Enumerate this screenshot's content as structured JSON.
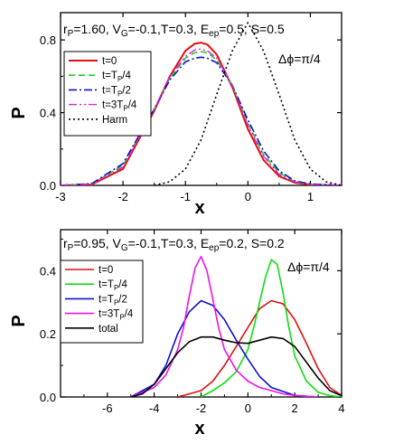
{
  "chart_data": [
    {
      "type": "line",
      "title": {
        "parts": [
          {
            "t": "r"
          },
          {
            "t": "P",
            "sub": true
          },
          {
            "t": "=1.60, V"
          },
          {
            "t": "G",
            "sub": true
          },
          {
            "t": "=-0.1,T=0.3, E"
          },
          {
            "t": "ep",
            "sub": true
          },
          {
            "t": "=0.5, S=0.5"
          }
        ]
      },
      "annotation": "Δϕ=π/4",
      "xlabel": "x",
      "ylabel": "P",
      "xlim": [
        -3,
        1.5
      ],
      "ylim": [
        0,
        0.95
      ],
      "xticks": [
        -3,
        -2,
        -1,
        0,
        1
      ],
      "xticklabels": [
        "-3",
        "-2",
        "-1",
        "0",
        "1"
      ],
      "yticks": [
        0,
        0.4,
        0.8
      ],
      "yticklabels": [
        "0.0",
        "0.4",
        "0.8"
      ],
      "legend_position": "left",
      "series": [
        {
          "name_parts": [
            {
              "t": "t=0"
            }
          ],
          "color": "#e01010",
          "dash": "",
          "width": 2,
          "x": [
            -3,
            -2.5,
            -2,
            -1.5,
            -1.25,
            -1,
            -0.85,
            -0.75,
            -0.65,
            -0.5,
            -0.25,
            0,
            0.25,
            0.5,
            0.75,
            1,
            1.5
          ],
          "y": [
            0.0,
            0.005,
            0.09,
            0.41,
            0.6,
            0.74,
            0.78,
            0.785,
            0.775,
            0.72,
            0.54,
            0.31,
            0.14,
            0.05,
            0.015,
            0.004,
            0.0
          ]
        },
        {
          "name_parts": [
            {
              "t": "t=T"
            },
            {
              "t": "P",
              "sub": true
            },
            {
              "t": "/4"
            }
          ],
          "color": "#22cc22",
          "dash": "7,4",
          "width": 1.6,
          "x": [
            -3,
            -2.5,
            -2,
            -1.5,
            -1.25,
            -1,
            -0.85,
            -0.75,
            -0.65,
            -0.5,
            -0.25,
            0,
            0.25,
            0.5,
            0.75,
            1,
            1.5
          ],
          "y": [
            0.0,
            0.008,
            0.11,
            0.42,
            0.59,
            0.7,
            0.73,
            0.735,
            0.73,
            0.69,
            0.55,
            0.34,
            0.17,
            0.07,
            0.02,
            0.006,
            0.0
          ]
        },
        {
          "name_parts": [
            {
              "t": "t=T"
            },
            {
              "t": "P",
              "sub": true
            },
            {
              "t": "/2"
            }
          ],
          "color": "#1010cc",
          "dash": "9,3,2,3",
          "width": 1.6,
          "x": [
            -3,
            -2.5,
            -2,
            -1.5,
            -1.25,
            -1,
            -0.85,
            -0.75,
            -0.65,
            -0.5,
            -0.25,
            0,
            0.25,
            0.5,
            0.75,
            1,
            1.5
          ],
          "y": [
            0.0,
            0.01,
            0.12,
            0.42,
            0.58,
            0.68,
            0.7,
            0.705,
            0.7,
            0.675,
            0.55,
            0.36,
            0.19,
            0.08,
            0.025,
            0.008,
            0.0
          ]
        },
        {
          "name_parts": [
            {
              "t": "t=3T"
            },
            {
              "t": "P",
              "sub": true
            },
            {
              "t": "/4"
            }
          ],
          "color": "#dd22dd",
          "dash": "9,3,2,3,2,3",
          "width": 1.4,
          "x": [
            -3,
            -2.5,
            -2,
            -1.5,
            -1.25,
            -1,
            -0.85,
            -0.75,
            -0.65,
            -0.5,
            -0.25,
            0,
            0.25,
            0.5,
            0.75,
            1,
            1.5
          ],
          "y": [
            0.0,
            0.007,
            0.1,
            0.42,
            0.6,
            0.71,
            0.745,
            0.75,
            0.74,
            0.7,
            0.55,
            0.33,
            0.16,
            0.06,
            0.02,
            0.005,
            0.0
          ]
        },
        {
          "name_parts": [
            {
              "t": "Harm"
            }
          ],
          "color": "#000000",
          "dash": "2,3",
          "width": 1.6,
          "x": [
            -1.5,
            -1.25,
            -1,
            -0.75,
            -0.5,
            -0.25,
            0,
            0.25,
            0.5,
            0.75,
            1,
            1.25,
            1.5
          ],
          "y": [
            0.0,
            0.02,
            0.09,
            0.25,
            0.5,
            0.74,
            0.895,
            0.74,
            0.5,
            0.25,
            0.09,
            0.02,
            0.0
          ]
        }
      ]
    },
    {
      "type": "line",
      "title": {
        "parts": [
          {
            "t": "r"
          },
          {
            "t": "P",
            "sub": true
          },
          {
            "t": "=0.95, V"
          },
          {
            "t": "G",
            "sub": true
          },
          {
            "t": "=-0.1,T=0.3, E"
          },
          {
            "t": "ep",
            "sub": true
          },
          {
            "t": "=0.2, S=0.2"
          }
        ]
      },
      "annotation": "Δϕ=π/4",
      "xlabel": "x",
      "ylabel": "P",
      "xlim": [
        -8,
        4
      ],
      "ylim": [
        0,
        0.53
      ],
      "xticks": [
        -6,
        -4,
        -2,
        0,
        2,
        4
      ],
      "xticklabels": [
        "-6",
        "-4",
        "-2",
        "0",
        "2",
        "4"
      ],
      "yticks": [
        0,
        0.2,
        0.4
      ],
      "yticklabels": [
        "0.0",
        "0.2",
        "0.4"
      ],
      "legend_position": "left",
      "series": [
        {
          "name_parts": [
            {
              "t": "t=0"
            }
          ],
          "color": "#e01010",
          "dash": "",
          "width": 1.6,
          "x": [
            -3,
            -2,
            -1.5,
            -1,
            -0.5,
            0,
            0.5,
            1,
            1.5,
            2,
            2.5,
            3,
            3.5,
            4
          ],
          "y": [
            0.0,
            0.02,
            0.05,
            0.1,
            0.16,
            0.22,
            0.28,
            0.305,
            0.295,
            0.245,
            0.17,
            0.09,
            0.03,
            0.005
          ]
        },
        {
          "name_parts": [
            {
              "t": "t=T"
            },
            {
              "t": "P",
              "sub": true
            },
            {
              "t": "/4"
            }
          ],
          "color": "#11dd11",
          "dash": "",
          "width": 1.6,
          "x": [
            -2,
            -1.5,
            -1,
            -0.5,
            0,
            0.25,
            0.5,
            0.75,
            1,
            1.25,
            1.5,
            1.75,
            2,
            2.5,
            3,
            3.5,
            4
          ],
          "y": [
            0.0,
            0.02,
            0.045,
            0.08,
            0.15,
            0.22,
            0.3,
            0.38,
            0.435,
            0.42,
            0.33,
            0.22,
            0.13,
            0.05,
            0.015,
            0.004,
            0.0
          ]
        },
        {
          "name_parts": [
            {
              "t": "t=T"
            },
            {
              "t": "P",
              "sub": true
            },
            {
              "t": "/2"
            }
          ],
          "color": "#1010cc",
          "dash": "",
          "width": 1.6,
          "x": [
            -5,
            -4,
            -3.5,
            -3,
            -2.5,
            -2,
            -1.5,
            -1,
            -0.5,
            0,
            0.5,
            1,
            2,
            3
          ],
          "y": [
            0.0,
            0.04,
            0.1,
            0.2,
            0.27,
            0.305,
            0.29,
            0.245,
            0.18,
            0.12,
            0.065,
            0.03,
            0.005,
            0.0
          ]
        },
        {
          "name_parts": [
            {
              "t": "t=3T"
            },
            {
              "t": "P",
              "sub": true
            },
            {
              "t": "/4"
            }
          ],
          "color": "#ee11ee",
          "dash": "",
          "width": 1.6,
          "x": [
            -5,
            -4,
            -3.5,
            -3,
            -2.75,
            -2.5,
            -2.25,
            -2,
            -1.75,
            -1.5,
            -1.25,
            -1,
            -0.5,
            0,
            0.5,
            1,
            1.5,
            2,
            3
          ],
          "y": [
            0.0,
            0.03,
            0.07,
            0.15,
            0.22,
            0.32,
            0.41,
            0.445,
            0.4,
            0.31,
            0.22,
            0.15,
            0.085,
            0.05,
            0.03,
            0.02,
            0.01,
            0.005,
            0.0
          ]
        },
        {
          "name_parts": [
            {
              "t": "total"
            }
          ],
          "color": "#000000",
          "dash": "",
          "width": 1.6,
          "x": [
            -5,
            -4.5,
            -4,
            -3.5,
            -3,
            -2.5,
            -2,
            -1.5,
            -1,
            -0.5,
            0,
            0.5,
            1,
            1.5,
            2,
            2.5,
            3,
            3.5,
            4
          ],
          "y": [
            0.0,
            0.01,
            0.04,
            0.09,
            0.14,
            0.175,
            0.19,
            0.19,
            0.18,
            0.172,
            0.17,
            0.18,
            0.19,
            0.185,
            0.16,
            0.11,
            0.06,
            0.02,
            0.004
          ]
        }
      ]
    }
  ]
}
